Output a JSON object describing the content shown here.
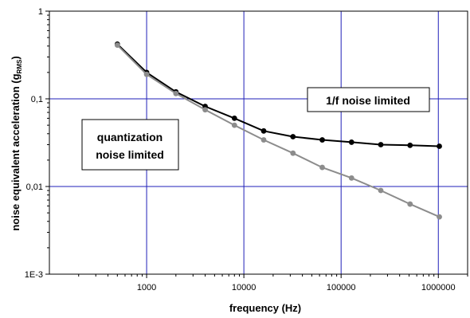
{
  "chart_data": {
    "type": "line",
    "xlabel": "frequency (Hz)",
    "ylabel_main": "noise equivalent acceleration (g",
    "ylabel_sub": "RMS",
    "ylabel_end": ")",
    "x_scale": "log",
    "y_scale": "log",
    "xlim": [
      100,
      2000000
    ],
    "ylim": [
      0.001,
      1
    ],
    "x_ticks": [
      1000,
      10000,
      100000,
      1000000
    ],
    "x_tick_labels": [
      "1000",
      "10000",
      "100000",
      "1000000"
    ],
    "y_ticks": [
      0.001,
      0.01,
      0.1,
      1
    ],
    "y_tick_labels": [
      "1E-3",
      "0,01",
      "0,1",
      "1"
    ],
    "grid": true,
    "annotations": [
      {
        "lines": [
          "1/f noise limited"
        ]
      },
      {
        "lines": [
          "quantization",
          "noise limited"
        ]
      }
    ],
    "series": [
      {
        "color": "#000000",
        "x": [
          500,
          1000,
          2000,
          4000,
          8000,
          16000,
          32000,
          64000,
          128000,
          256000,
          512000,
          1024000
        ],
        "y": [
          0.42,
          0.2,
          0.12,
          0.082,
          0.06,
          0.043,
          0.037,
          0.034,
          0.032,
          0.03,
          0.0295,
          0.0288
        ]
      },
      {
        "color": "#8c8c8c",
        "x": [
          500,
          1000,
          2000,
          4000,
          8000,
          16000,
          32000,
          64000,
          128000,
          256000,
          512000,
          1024000
        ],
        "y": [
          0.41,
          0.19,
          0.115,
          0.075,
          0.05,
          0.034,
          0.024,
          0.0165,
          0.0125,
          0.009,
          0.0063,
          0.0045
        ]
      }
    ]
  }
}
